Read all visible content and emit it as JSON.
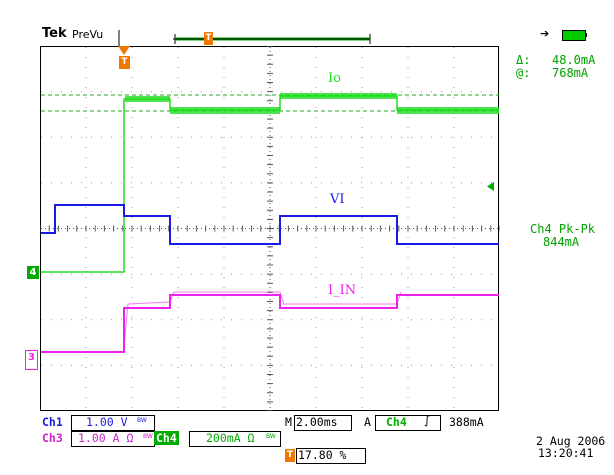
{
  "header": {
    "brand": "Tek",
    "status": "PreVu",
    "trigger_position_marker": "T"
  },
  "cursor_readout": {
    "delta_symbol": "Δ:",
    "delta_value": "48.0mA",
    "at_symbol": "@:",
    "at_value": "768mA"
  },
  "measurement": {
    "label": "Ch4 Pk-Pk",
    "value": "844mA"
  },
  "traces": [
    {
      "name": "Io",
      "channel": "4",
      "color": "#22dd22"
    },
    {
      "name": "VI",
      "channel": "1",
      "color": "#1a1ae6"
    },
    {
      "name": "I_IN",
      "channel": "3",
      "color": "#ee22ee"
    }
  ],
  "channel_markers": {
    "ch4": "4",
    "ch3": "3",
    "trigger": "T"
  },
  "bottom_bar": {
    "ch1_label": "Ch1",
    "ch1_scale": "1.00 V",
    "ch1_bw": "BW",
    "ch3_label": "Ch3",
    "ch3_scale": "1.00 A Ω",
    "ch3_bw": "BW",
    "ch4_label": "Ch4",
    "ch4_scale": "200mA Ω",
    "ch4_bw": "BW",
    "timebase_prefix": "M",
    "timebase": "2.00ms",
    "trigger_mode": "A",
    "trigger_source": "Ch4",
    "trigger_slope": "∫",
    "trigger_level": "388mA",
    "trigger_pos_marker": "T",
    "trigger_pos": "17.80 %",
    "date": "2 Aug 2006",
    "time": "13:20:41"
  },
  "colors": {
    "ch1": "#1a1ae6",
    "ch3": "#ee22ee",
    "ch4": "#22dd22",
    "readout": "#00a000",
    "trigger": "#f07800"
  }
}
